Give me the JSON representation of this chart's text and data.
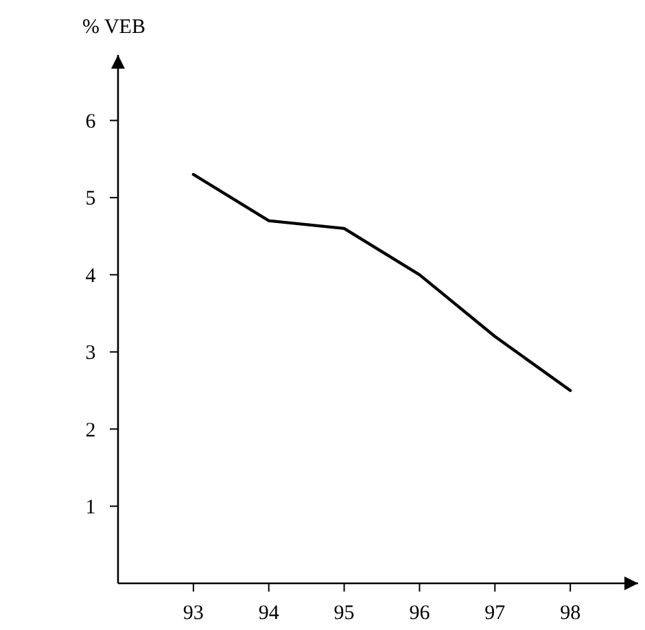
{
  "chart_data": {
    "type": "line",
    "ylabel": "% VEB",
    "x": [
      93,
      94,
      95,
      96,
      97,
      98
    ],
    "series": [
      {
        "color": "#000000",
        "values": [
          5.3,
          4.7,
          4.6,
          4.0,
          3.2,
          2.5
        ]
      }
    ],
    "xlim": [
      92,
      98.9
    ],
    "ylim": [
      0,
      6.85
    ],
    "xticks": [
      93,
      94,
      95,
      96,
      97,
      98
    ],
    "yticks": [
      1,
      2,
      3,
      4,
      5,
      6
    ],
    "grid": false,
    "marker": "none",
    "line_style": "solid"
  }
}
